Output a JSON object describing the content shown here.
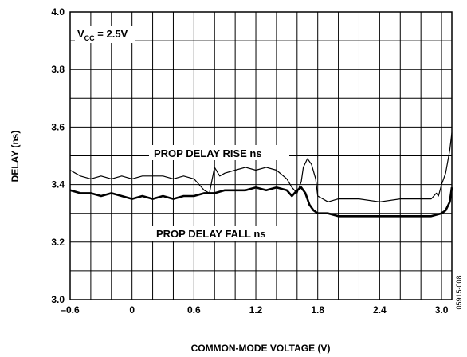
{
  "chart_data": {
    "type": "line",
    "xlabel": "COMMON-MODE VOLTAGE (V)",
    "ylabel": "DELAY (ns)",
    "xlim": [
      -0.6,
      3.1
    ],
    "ylim": [
      3.0,
      4.0
    ],
    "x_ticks": [
      "–0.6",
      "0",
      "0.6",
      "1.2",
      "1.8",
      "2.4",
      "3.0"
    ],
    "y_ticks": [
      "3.0",
      "3.2",
      "3.4",
      "3.6",
      "3.8",
      "4.0"
    ],
    "grid": true,
    "annotation": {
      "prefix": "V",
      "sub": "CC",
      "suffix": " = 2.5V"
    },
    "figure_id": "05915-008",
    "series": [
      {
        "name": "PROP DELAY RISE ns",
        "color": "#000000",
        "x": [
          -0.6,
          -0.5,
          -0.4,
          -0.3,
          -0.2,
          -0.1,
          0.0,
          0.1,
          0.2,
          0.3,
          0.4,
          0.5,
          0.6,
          0.7,
          0.75,
          0.8,
          0.85,
          0.9,
          1.0,
          1.1,
          1.2,
          1.3,
          1.4,
          1.5,
          1.55,
          1.6,
          1.64,
          1.66,
          1.7,
          1.74,
          1.78,
          1.8,
          1.9,
          2.0,
          2.2,
          2.4,
          2.6,
          2.8,
          2.9,
          2.95,
          2.97,
          3.0,
          3.04,
          3.08,
          3.1
        ],
        "y": [
          3.45,
          3.43,
          3.42,
          3.43,
          3.42,
          3.43,
          3.42,
          3.43,
          3.43,
          3.43,
          3.42,
          3.43,
          3.42,
          3.38,
          3.37,
          3.46,
          3.43,
          3.44,
          3.45,
          3.46,
          3.45,
          3.46,
          3.45,
          3.42,
          3.39,
          3.37,
          3.41,
          3.46,
          3.49,
          3.47,
          3.42,
          3.36,
          3.34,
          3.35,
          3.35,
          3.34,
          3.35,
          3.35,
          3.35,
          3.37,
          3.36,
          3.4,
          3.44,
          3.52,
          3.58
        ]
      },
      {
        "name": "PROP DELAY FALL ns",
        "color": "#000000",
        "x": [
          -0.6,
          -0.5,
          -0.4,
          -0.3,
          -0.2,
          -0.1,
          0.0,
          0.1,
          0.2,
          0.3,
          0.4,
          0.5,
          0.6,
          0.7,
          0.8,
          0.9,
          1.0,
          1.1,
          1.2,
          1.3,
          1.4,
          1.5,
          1.55,
          1.6,
          1.64,
          1.68,
          1.72,
          1.76,
          1.8,
          1.9,
          2.0,
          2.2,
          2.4,
          2.6,
          2.8,
          2.9,
          3.0,
          3.04,
          3.08,
          3.1
        ],
        "y": [
          3.38,
          3.37,
          3.37,
          3.36,
          3.37,
          3.36,
          3.35,
          3.36,
          3.35,
          3.36,
          3.35,
          3.36,
          3.36,
          3.37,
          3.37,
          3.38,
          3.38,
          3.38,
          3.39,
          3.38,
          3.39,
          3.38,
          3.36,
          3.38,
          3.39,
          3.37,
          3.33,
          3.31,
          3.3,
          3.3,
          3.29,
          3.29,
          3.29,
          3.29,
          3.29,
          3.29,
          3.3,
          3.31,
          3.34,
          3.39
        ]
      }
    ]
  }
}
